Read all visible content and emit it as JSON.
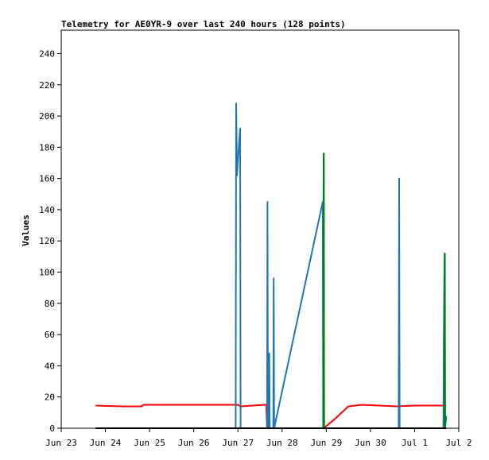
{
  "chart_data": {
    "type": "line",
    "title": "Telemetry for AE0YR-9 over last 240 hours (128 points)",
    "xlabel": "",
    "ylabel": "Values",
    "ylim": [
      0,
      255
    ],
    "yticks": [
      0,
      20,
      40,
      60,
      80,
      100,
      120,
      140,
      160,
      180,
      200,
      220,
      240
    ],
    "x_range_days": [
      "2024-06-23",
      "2024-07-02"
    ],
    "xticks": [
      {
        "day": 0,
        "label": "Jun 23"
      },
      {
        "day": 1,
        "label": "Jun 24"
      },
      {
        "day": 2,
        "label": "Jun 25"
      },
      {
        "day": 3,
        "label": "Jun 26"
      },
      {
        "day": 4,
        "label": "Jun 27"
      },
      {
        "day": 5,
        "label": "Jun 28"
      },
      {
        "day": 6,
        "label": "Jun 29"
      },
      {
        "day": 7,
        "label": "Jun 30"
      },
      {
        "day": 8,
        "label": "Jul 1"
      },
      {
        "day": 9,
        "label": "Jul 2"
      }
    ],
    "grid": false,
    "legend": "none",
    "series": [
      {
        "color": "#ff0000",
        "points": [
          [
            0.78,
            14.5
          ],
          [
            1.4,
            14
          ],
          [
            1.82,
            14
          ],
          [
            1.86,
            15
          ],
          [
            2.8,
            15
          ],
          [
            3.5,
            15
          ],
          [
            3.95,
            15
          ],
          [
            4.0,
            15
          ],
          [
            4.06,
            14
          ],
          [
            4.6,
            15
          ],
          [
            4.64,
            15
          ],
          [
            4.66,
            0
          ],
          [
            4.7,
            0
          ],
          [
            5.94,
            0
          ],
          [
            6.2,
            6
          ],
          [
            6.5,
            14
          ],
          [
            6.8,
            15
          ],
          [
            7.2,
            14.5
          ],
          [
            7.6,
            14
          ],
          [
            8.0,
            14.5
          ],
          [
            8.5,
            14.5
          ],
          [
            8.72,
            14.5
          ]
        ]
      },
      {
        "color": "#1f77b4",
        "points": [
          [
            3.95,
            0
          ],
          [
            3.96,
            208
          ],
          [
            3.98,
            162
          ],
          [
            4.02,
            180
          ],
          [
            4.05,
            192
          ],
          [
            4.06,
            0
          ],
          [
            4.66,
            0
          ],
          [
            4.67,
            145
          ],
          [
            4.68,
            0
          ],
          [
            4.7,
            0
          ],
          [
            4.71,
            48
          ],
          [
            4.72,
            0
          ],
          [
            4.8,
            0
          ],
          [
            4.81,
            96
          ],
          [
            4.82,
            0
          ],
          [
            5.92,
            145
          ],
          [
            5.93,
            0
          ],
          [
            5.94,
            176
          ],
          [
            5.95,
            0
          ],
          [
            7.64,
            0
          ],
          [
            7.65,
            160
          ],
          [
            7.66,
            0
          ],
          [
            8.65,
            0
          ],
          [
            8.66,
            56
          ],
          [
            8.67,
            94
          ],
          [
            8.68,
            112
          ],
          [
            8.69,
            0
          ],
          [
            8.72,
            8
          ]
        ]
      },
      {
        "color": "#008000",
        "points": [
          [
            5.94,
            0
          ],
          [
            5.945,
            176
          ],
          [
            5.95,
            0
          ],
          [
            8.68,
            0
          ],
          [
            8.685,
            112
          ],
          [
            8.69,
            0
          ]
        ]
      },
      {
        "color": "#000000",
        "points": [
          [
            0.78,
            0
          ],
          [
            8.72,
            0
          ]
        ]
      }
    ]
  }
}
